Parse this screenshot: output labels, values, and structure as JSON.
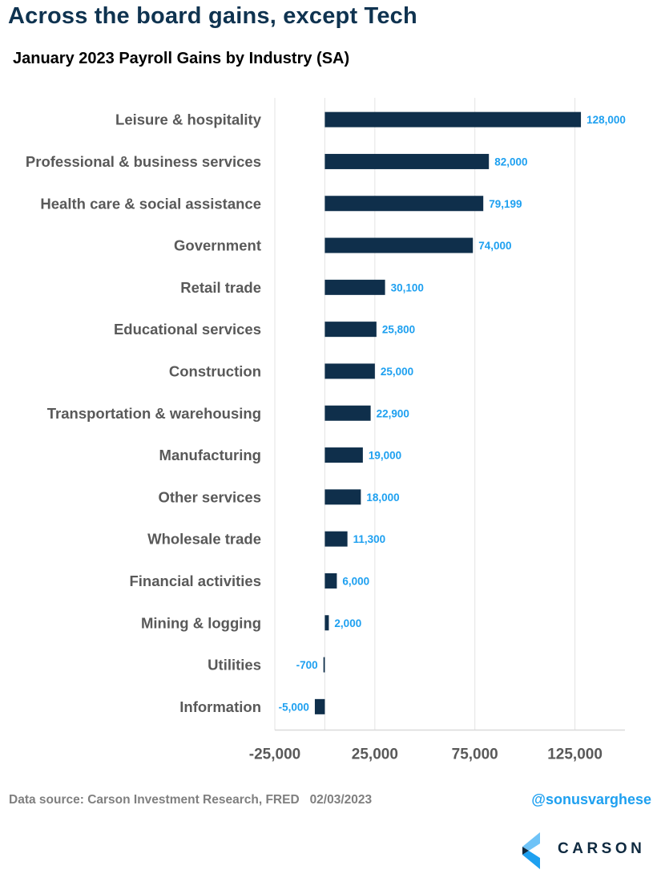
{
  "headline": "Across the board gains, except Tech",
  "footer": {
    "source": "Data source: Carson Investment Research, FRED   02/03/2023",
    "handle": "@sonusvarghese",
    "logo_text": "CARSON"
  },
  "colors": {
    "bar": "#0f2f4b",
    "value_label": "#1ea0f0",
    "headline": "#0f3350",
    "grid": "#e3e3e3"
  },
  "chart_data": {
    "type": "bar",
    "orientation": "horizontal",
    "title": "January 2023 Payroll Gains by Industry (SA)",
    "xlabel": "",
    "ylabel": "",
    "xlim": [
      -25000,
      150000
    ],
    "grid": true,
    "legend": "none",
    "categories": [
      "Leisure & hospitality",
      "Professional & business services",
      "Health care & social assistance",
      "Government",
      "Retail trade",
      "Educational services",
      "Construction",
      "Transportation & warehousing",
      "Manufacturing",
      "Other services",
      "Wholesale trade",
      "Financial activities",
      "Mining & logging",
      "Utilities",
      "Information"
    ],
    "values": [
      128000,
      82000,
      79199,
      74000,
      30100,
      25800,
      25000,
      22900,
      19000,
      18000,
      11300,
      6000,
      2000,
      -700,
      -5000
    ],
    "value_labels": [
      "128,000",
      "82,000",
      "79,199",
      "74,000",
      "30,100",
      "25,800",
      "25,000",
      "22,900",
      "19,000",
      "18,000",
      "11,300",
      "6,000",
      "2,000",
      "-700",
      "-5,000"
    ],
    "x_ticks": [
      -25000,
      25000,
      75000,
      125000
    ],
    "x_tick_labels": [
      "-25,000",
      "25,000",
      "75,000",
      "125,000"
    ]
  }
}
